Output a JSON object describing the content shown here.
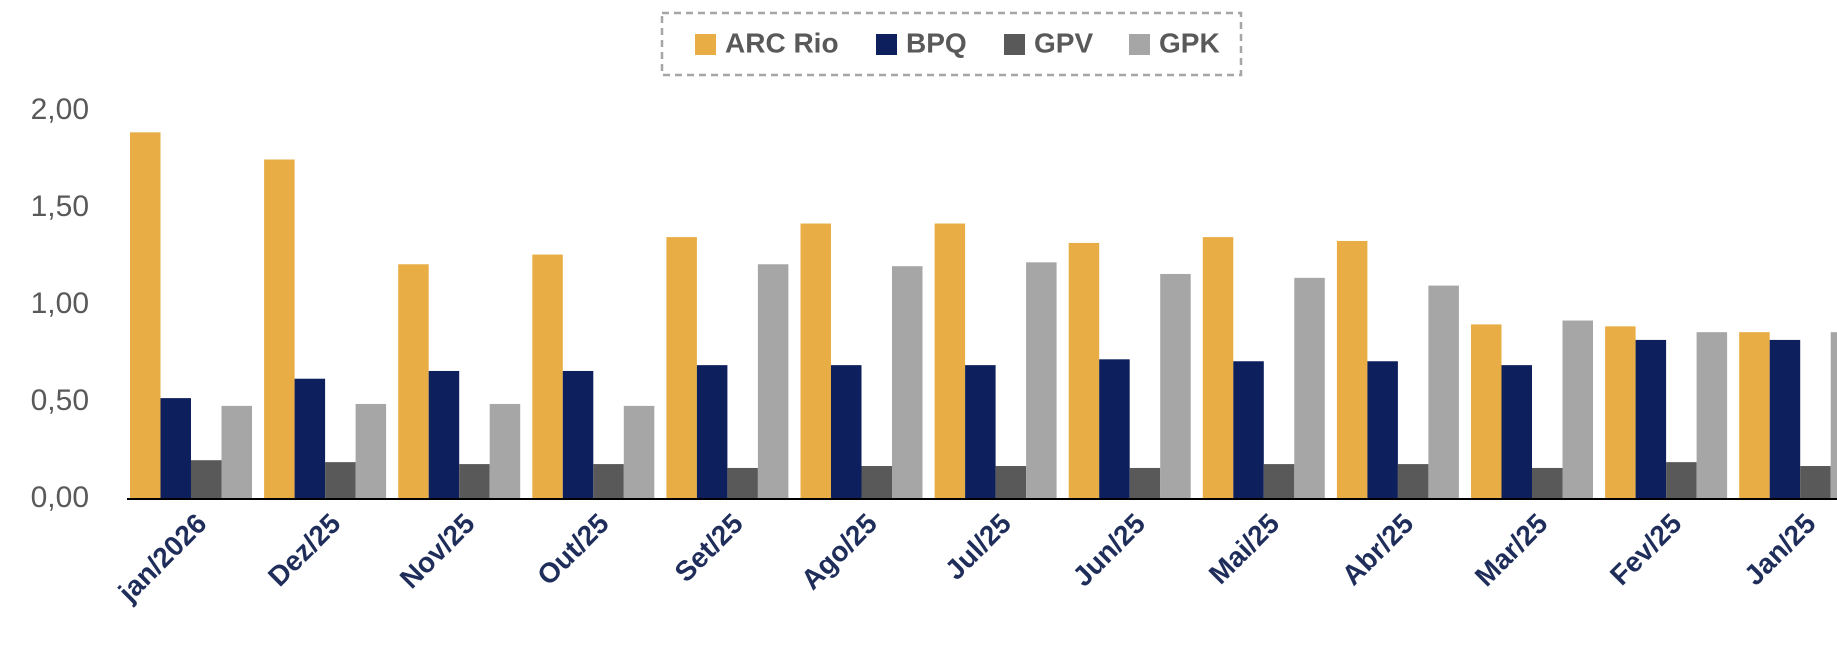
{
  "chart_data": {
    "type": "bar",
    "categories": [
      "jan/2026",
      "Dez/25",
      "Nov/25",
      "Out/25",
      "Set/25",
      "Ago/25",
      "Jul/25",
      "Jun/25",
      "Mai/25",
      "Abr/25",
      "Mar/25",
      "Fev/25",
      "Jan/25"
    ],
    "series": [
      {
        "name": "ARC Rio",
        "color": "#E8AE45",
        "values": [
          1.89,
          1.75,
          1.21,
          1.26,
          1.35,
          1.42,
          1.42,
          1.32,
          1.35,
          1.33,
          0.9,
          0.89,
          0.86
        ]
      },
      {
        "name": "BPQ",
        "color": "#0D1F5C",
        "values": [
          0.52,
          0.62,
          0.66,
          0.66,
          0.69,
          0.69,
          0.69,
          0.72,
          0.71,
          0.71,
          0.69,
          0.82,
          0.82
        ]
      },
      {
        "name": "GPV",
        "color": "#595959",
        "values": [
          0.2,
          0.19,
          0.18,
          0.18,
          0.16,
          0.17,
          0.17,
          0.16,
          0.18,
          0.18,
          0.16,
          0.19,
          0.17
        ]
      },
      {
        "name": "GPK",
        "color": "#A6A6A6",
        "values": [
          0.48,
          0.49,
          0.49,
          0.48,
          1.21,
          1.2,
          1.22,
          1.16,
          1.14,
          1.1,
          0.92,
          0.86,
          0.86
        ]
      }
    ],
    "ylim": [
      0,
      2
    ],
    "yticks": [
      {
        "value": 0,
        "label": "0,00"
      },
      {
        "value": 0.5,
        "label": "0,50"
      },
      {
        "value": 1,
        "label": "1,00"
      },
      {
        "value": 1.5,
        "label": "1,50"
      },
      {
        "value": 2,
        "label": "2,00"
      }
    ],
    "grid": false,
    "legend": "top"
  }
}
